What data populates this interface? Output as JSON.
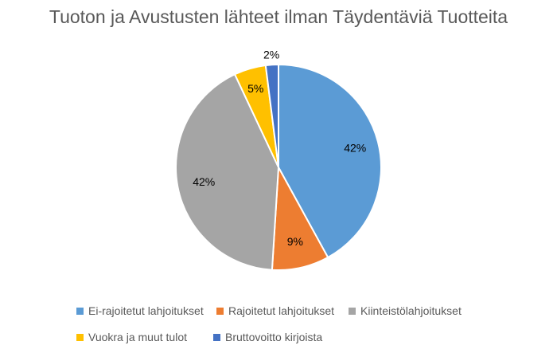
{
  "chart_data": {
    "type": "pie",
    "title": "Tuoton ja Avustusten lähteet ilman Täydentäviä Tuotteita",
    "slices": [
      {
        "label": "Ei-rajoitetut lahjoitukset",
        "value": 42,
        "data_label": "42%",
        "color": "#5B9BD5"
      },
      {
        "label": "Rajoitetut lahjoitukset",
        "value": 9,
        "data_label": "9%",
        "color": "#ED7D31"
      },
      {
        "label": "Kiinteistölahjoitukset",
        "value": 42,
        "data_label": "42%",
        "color": "#A5A5A5"
      },
      {
        "label": "Vuokra ja muut tulot",
        "value": 5,
        "data_label": "5%",
        "color": "#FFC000"
      },
      {
        "label": "Bruttovoitto kirjoista",
        "value": 2,
        "data_label": "2%",
        "color": "#4472C4"
      }
    ],
    "legend_position": "bottom"
  }
}
